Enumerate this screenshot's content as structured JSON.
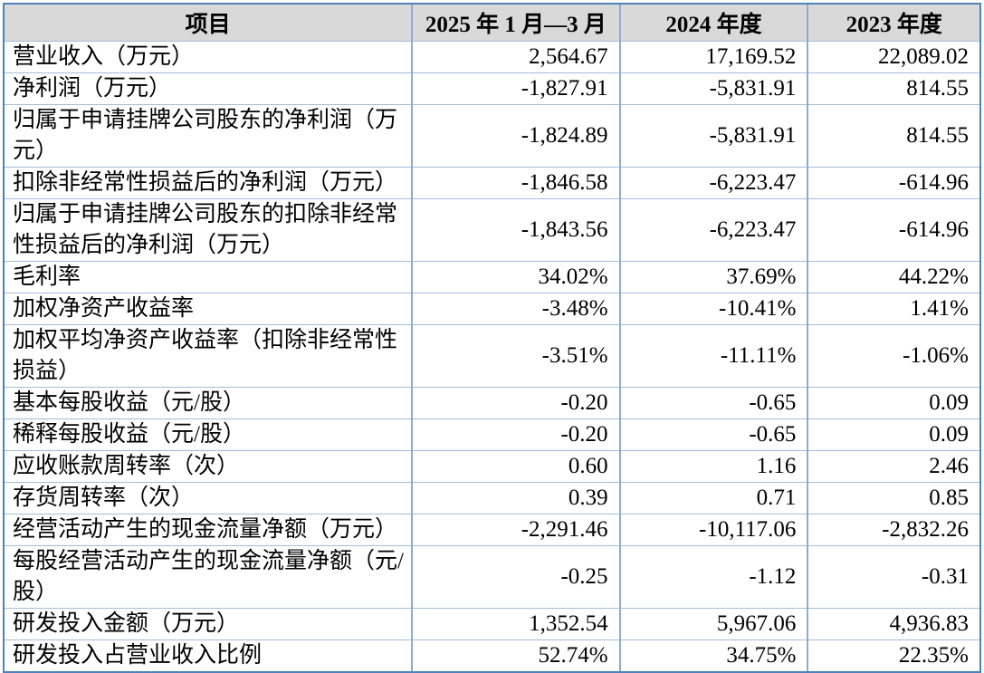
{
  "table": {
    "columns": [
      "项目",
      "2025 年 1 月—3 月",
      "2024 年度",
      "2023 年度"
    ],
    "rows": [
      {
        "label": "营业收入（万元）",
        "values": [
          "2,564.67",
          "17,169.52",
          "22,089.02"
        ]
      },
      {
        "label": "净利润（万元）",
        "values": [
          "-1,827.91",
          "-5,831.91",
          "814.55"
        ]
      },
      {
        "label": "归属于申请挂牌公司股东的净利润（万元）",
        "values": [
          "-1,824.89",
          "-5,831.91",
          "814.55"
        ]
      },
      {
        "label": "扣除非经常性损益后的净利润（万元）",
        "values": [
          "-1,846.58",
          "-6,223.47",
          "-614.96"
        ]
      },
      {
        "label": "归属于申请挂牌公司股东的扣除非经常性损益后的净利润（万元）",
        "values": [
          "-1,843.56",
          "-6,223.47",
          "-614.96"
        ]
      },
      {
        "label": "毛利率",
        "values": [
          "34.02%",
          "37.69%",
          "44.22%"
        ]
      },
      {
        "label": "加权净资产收益率",
        "values": [
          "-3.48%",
          "-10.41%",
          "1.41%"
        ]
      },
      {
        "label": "加权平均净资产收益率（扣除非经常性损益）",
        "values": [
          "-3.51%",
          "-11.11%",
          "-1.06%"
        ]
      },
      {
        "label": "基本每股收益（元/股）",
        "values": [
          "-0.20",
          "-0.65",
          "0.09"
        ]
      },
      {
        "label": "稀释每股收益（元/股）",
        "values": [
          "-0.20",
          "-0.65",
          "0.09"
        ]
      },
      {
        "label": "应收账款周转率（次）",
        "values": [
          "0.60",
          "1.16",
          "2.46"
        ]
      },
      {
        "label": "存货周转率（次）",
        "values": [
          "0.39",
          "0.71",
          "0.85"
        ]
      },
      {
        "label": "经营活动产生的现金流量净额（万元）",
        "values": [
          "-2,291.46",
          "-10,117.06",
          "-2,832.26"
        ]
      },
      {
        "label": "每股经营活动产生的现金流量净额（元/股）",
        "values": [
          "-0.25",
          "-1.12",
          "-0.31"
        ]
      },
      {
        "label": "研发投入金额（万元）",
        "values": [
          "1,352.54",
          "5,967.06",
          "4,936.83"
        ]
      },
      {
        "label": "研发投入占营业收入比例",
        "values": [
          "52.74%",
          "34.75%",
          "22.35%"
        ]
      }
    ],
    "colors": {
      "header_bg": "#d9d9d9",
      "outer_border": "#4f81bd",
      "inner_border_h": "#a3bdd9",
      "inner_border_v": "#8fabd0"
    }
  }
}
